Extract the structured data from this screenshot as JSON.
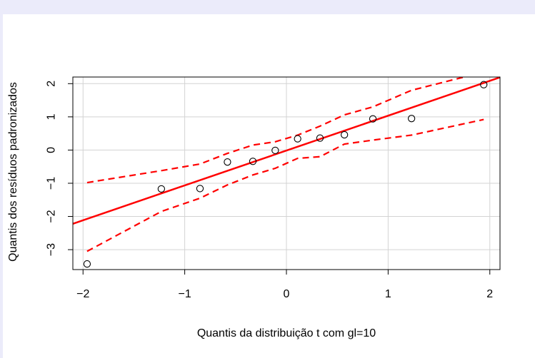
{
  "chart_data": {
    "type": "scatter",
    "title": "",
    "xlabel": "Quantis da distribuição t com gl=10",
    "ylabel": "Quantis dos resíduos padronizados",
    "xlim": [
      -2.1,
      2.1
    ],
    "ylim": [
      -3.6,
      2.2
    ],
    "grid": true,
    "x_ticks": [
      -2,
      -1,
      0,
      1,
      2
    ],
    "x_tick_labels": [
      "−2",
      "−1",
      "0",
      "1",
      "2"
    ],
    "y_ticks": [
      -3,
      -2,
      -1,
      0,
      1,
      2
    ],
    "y_tick_labels": [
      "−3",
      "−2",
      "−1",
      "0",
      "1",
      "2"
    ],
    "points": {
      "x": [
        -1.96,
        -1.23,
        -0.85,
        -0.58,
        -0.33,
        -0.11,
        0.11,
        0.33,
        0.57,
        0.85,
        1.23,
        1.94
      ],
      "y": [
        -3.43,
        -1.17,
        -1.16,
        -0.36,
        -0.34,
        -0.01,
        0.34,
        0.36,
        0.46,
        0.94,
        0.95,
        1.97
      ]
    },
    "reference_line": {
      "x": [
        -2.1,
        2.1
      ],
      "y": [
        -2.22,
        2.19
      ],
      "color": "#ff0000"
    },
    "envelope_upper": {
      "x": [
        -1.96,
        -1.23,
        -0.85,
        -0.58,
        -0.33,
        -0.11,
        0.11,
        0.33,
        0.57,
        0.85,
        1.23,
        1.94
      ],
      "y": [
        -0.98,
        -0.62,
        -0.42,
        -0.1,
        0.15,
        0.25,
        0.45,
        0.72,
        1.06,
        1.3,
        1.8,
        2.35
      ]
    },
    "envelope_lower": {
      "x": [
        -1.96,
        -1.23,
        -0.85,
        -0.58,
        -0.33,
        -0.11,
        0.11,
        0.33,
        0.57,
        0.85,
        1.23,
        1.94
      ],
      "y": [
        -3.05,
        -1.85,
        -1.45,
        -1.05,
        -0.75,
        -0.55,
        -0.25,
        -0.2,
        0.18,
        0.3,
        0.45,
        0.92
      ]
    },
    "envelope_color": "#ff0000"
  }
}
